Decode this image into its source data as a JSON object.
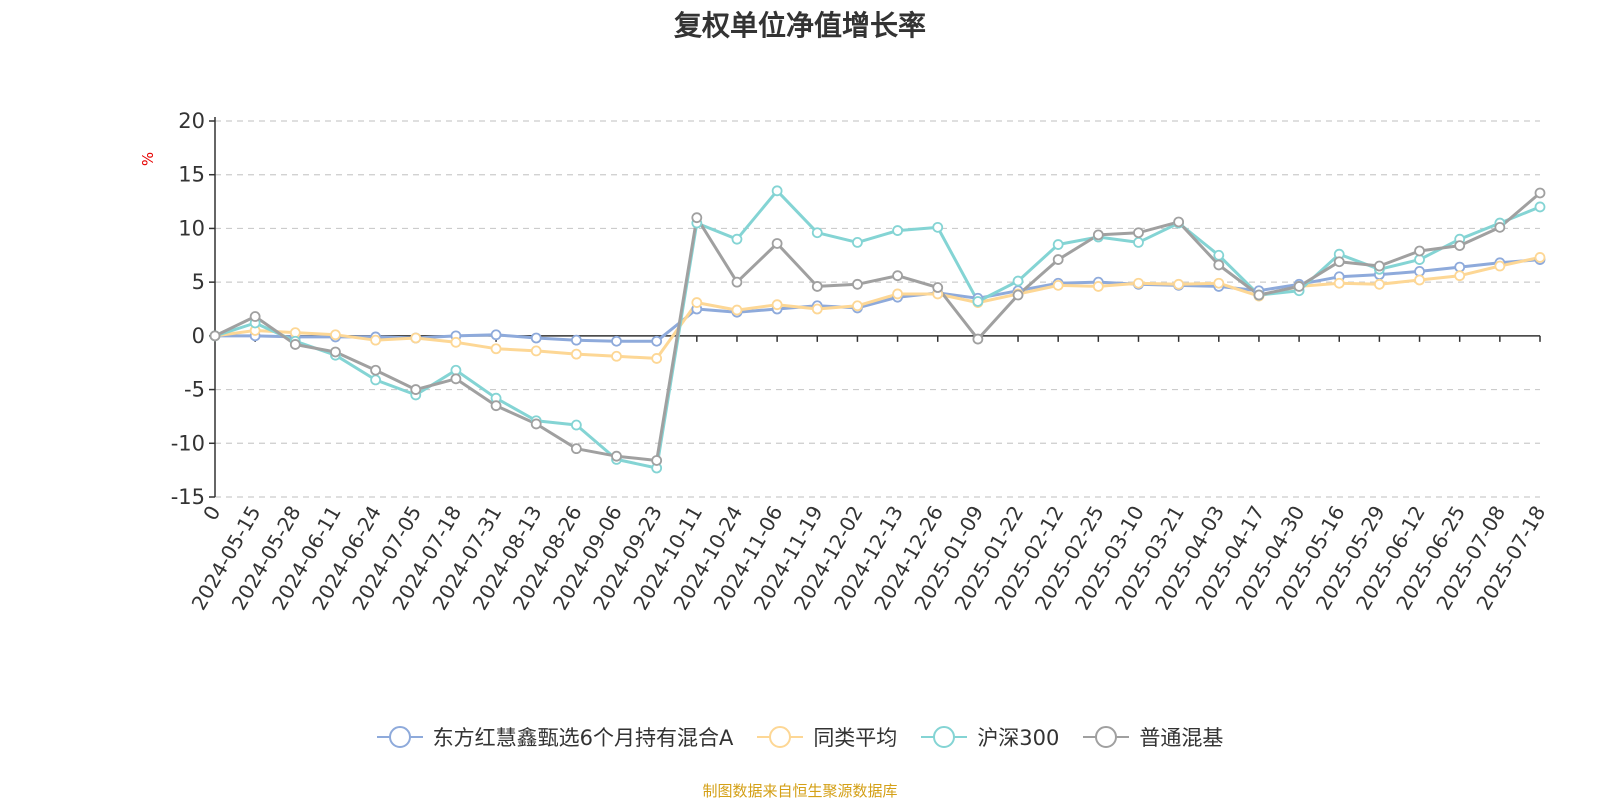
{
  "title": "复权单位净值增长率",
  "unit_label": "%",
  "source_note": "制图数据来自恒生聚源数据库",
  "chart_data": {
    "type": "line",
    "title": "复权单位净值增长率",
    "ylabel": "%",
    "ylim": [
      -15,
      20
    ],
    "yticks": [
      -15,
      -10,
      -5,
      0,
      5,
      10,
      15,
      20
    ],
    "grid": true,
    "legend_position": "bottom",
    "x_labels": [
      "0",
      "2024-05-15",
      "2024-05-28",
      "2024-06-11",
      "2024-06-24",
      "2024-07-05",
      "2024-07-18",
      "2024-07-31",
      "2024-08-13",
      "2024-08-26",
      "2024-09-06",
      "2024-09-23",
      "2024-10-11",
      "2024-10-24",
      "2024-11-06",
      "2024-11-19",
      "2024-12-02",
      "2024-12-13",
      "2024-12-26",
      "2025-01-09",
      "2025-01-22",
      "2025-02-12",
      "2025-02-25",
      "2025-03-10",
      "2025-03-21",
      "2025-04-03",
      "2025-04-17",
      "2025-04-30",
      "2025-05-16",
      "2025-05-29",
      "2025-06-12",
      "2025-06-25",
      "2025-07-08",
      "2025-07-18"
    ],
    "series": [
      {
        "name": "东方红慧鑫甄选6个月持有混合A",
        "color": "#8eaadb",
        "values": [
          0,
          0,
          -0.1,
          -0.1,
          -0.1,
          -0.2,
          0,
          0.1,
          -0.2,
          -0.4,
          -0.5,
          -0.5,
          2.5,
          2.2,
          2.5,
          2.8,
          2.6,
          3.6,
          4,
          3.5,
          4.2,
          4.9,
          5,
          4.8,
          4.7,
          4.6,
          4.2,
          4.8,
          5.5,
          5.7,
          6,
          6.4,
          6.8,
          7.1
        ]
      },
      {
        "name": "同类平均",
        "color": "#fdd795",
        "values": [
          0,
          0.5,
          0.3,
          0.1,
          -0.4,
          -0.2,
          -0.6,
          -1.2,
          -1.4,
          -1.7,
          -1.9,
          -2.1,
          3.1,
          2.4,
          2.9,
          2.5,
          2.8,
          3.9,
          3.9,
          3.1,
          3.9,
          4.7,
          4.6,
          4.9,
          4.8,
          4.9,
          3.7,
          4.6,
          4.9,
          4.8,
          5.2,
          5.6,
          6.5,
          7.3
        ]
      },
      {
        "name": "沪深300",
        "color": "#84d4d4",
        "values": [
          0,
          1.2,
          -0.5,
          -1.8,
          -4.1,
          -5.5,
          -3.2,
          -5.8,
          -7.9,
          -8.3,
          -11.5,
          -12.3,
          10.5,
          9,
          13.5,
          9.6,
          8.7,
          9.8,
          10.1,
          3.2,
          5.1,
          8.5,
          9.2,
          8.7,
          10.5,
          7.5,
          3.8,
          4.2,
          7.6,
          6.2,
          7.1,
          9,
          10.5,
          12
        ]
      },
      {
        "name": "普通混基",
        "color": "#a0a0a0",
        "values": [
          0,
          1.8,
          -0.8,
          -1.5,
          -3.2,
          -5,
          -4,
          -6.5,
          -8.2,
          -10.5,
          -11.2,
          -11.6,
          11,
          5,
          8.6,
          4.6,
          4.8,
          5.6,
          4.5,
          -0.3,
          3.8,
          7.1,
          9.4,
          9.6,
          10.6,
          6.6,
          3.8,
          4.6,
          6.9,
          6.5,
          7.9,
          8.4,
          10.1,
          13.3
        ]
      }
    ]
  }
}
